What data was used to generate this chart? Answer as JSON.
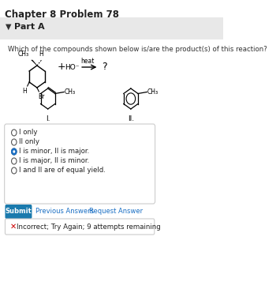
{
  "title": "Chapter 8 Problem 78",
  "part": "Part A",
  "question": "Which of the compounds shown below is/are the product(s) of this reaction?",
  "options": [
    "I only",
    "II only",
    "I is minor, II is major.",
    "I is major, II is minor.",
    "I and II are of equal yield."
  ],
  "selected_option": 2,
  "submit_text": "Submit",
  "prev_answers_text": "Previous Answers",
  "request_answer_text": "Request Answer",
  "error_text": "Incorrect; Try Again; 9 attempts remaining",
  "bg_color": "#ffffff",
  "part_bg": "#f0f0f0",
  "submit_color": "#1a7aad",
  "error_bg": "#fff5f5",
  "radio_selected_color": "#1a6fc4",
  "radio_unselected_color": "#ffffff"
}
